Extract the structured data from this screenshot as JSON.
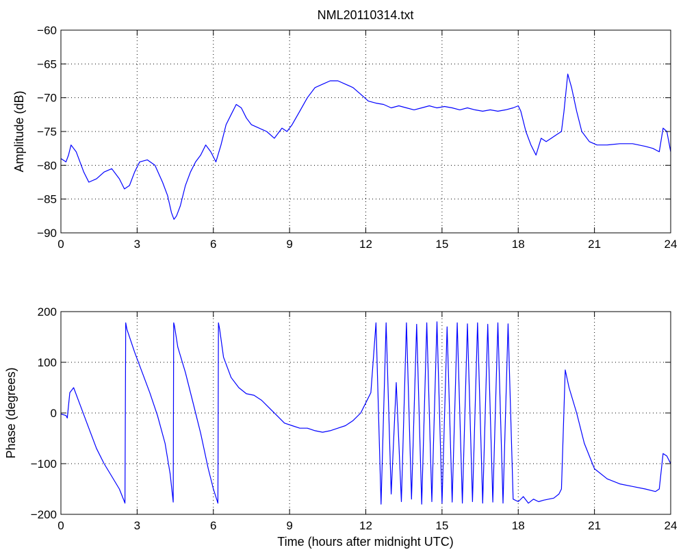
{
  "figure": {
    "title": "NML20110314.txt"
  },
  "colors": {
    "series": "#0000ff",
    "axis": "#000000",
    "grid": "#000000",
    "background": "#ffffff"
  },
  "chart_data": [
    {
      "type": "line",
      "title": "NML20110314.txt",
      "xlabel": "",
      "ylabel": "Amplitude (dB)",
      "xlim": [
        0,
        24
      ],
      "ylim": [
        -90,
        -60
      ],
      "xticks": [
        0,
        3,
        6,
        9,
        12,
        15,
        18,
        21,
        24
      ],
      "yticks": [
        -90,
        -85,
        -80,
        -75,
        -70,
        -65,
        -60
      ],
      "xtick_labels": [
        "0",
        "3",
        "6",
        "9",
        "12",
        "15",
        "18",
        "21",
        "24"
      ],
      "ytick_labels": [
        "−90",
        "−85",
        "−80",
        "−75",
        "−70",
        "−65",
        "−60"
      ],
      "grid": true,
      "series": [
        {
          "color": "#0000ff",
          "x": [
            0,
            0.2,
            0.3,
            0.4,
            0.6,
            0.9,
            1.1,
            1.4,
            1.7,
            2.0,
            2.3,
            2.5,
            2.7,
            2.9,
            3.1,
            3.4,
            3.7,
            4.0,
            4.2,
            4.35,
            4.45,
            4.55,
            4.7,
            4.9,
            5.1,
            5.3,
            5.5,
            5.7,
            5.9,
            6.1,
            6.3,
            6.5,
            6.7,
            6.9,
            7.1,
            7.3,
            7.5,
            7.8,
            8.1,
            8.4,
            8.7,
            8.9,
            9.1,
            9.4,
            9.7,
            10.0,
            10.3,
            10.6,
            10.9,
            11.2,
            11.5,
            11.8,
            12.1,
            12.4,
            12.7,
            13.0,
            13.3,
            13.6,
            13.9,
            14.2,
            14.5,
            14.8,
            15.1,
            15.4,
            15.7,
            16.0,
            16.3,
            16.6,
            16.9,
            17.2,
            17.5,
            17.8,
            18.0,
            18.1,
            18.3,
            18.5,
            18.7,
            18.9,
            19.1,
            19.3,
            19.5,
            19.7,
            19.8,
            19.95,
            20.1,
            20.3,
            20.5,
            20.8,
            21.1,
            21.5,
            22.0,
            22.5,
            23.0,
            23.3,
            23.55,
            23.7,
            23.85,
            24.0
          ],
          "y": [
            -79,
            -79.5,
            -78.5,
            -77,
            -78,
            -81,
            -82.5,
            -82,
            -81,
            -80.5,
            -82,
            -83.5,
            -83,
            -81,
            -79.5,
            -79.2,
            -80,
            -82.5,
            -84.5,
            -87,
            -88,
            -87.5,
            -86,
            -83,
            -81,
            -79.5,
            -78.5,
            -77,
            -78,
            -79.5,
            -77,
            -74,
            -72.5,
            -71,
            -71.5,
            -73,
            -74,
            -74.5,
            -75,
            -76,
            -74.5,
            -75,
            -74,
            -72,
            -70,
            -68.5,
            -68,
            -67.5,
            -67.5,
            -68,
            -68.5,
            -69.5,
            -70.5,
            -70.8,
            -71,
            -71.5,
            -71.2,
            -71.5,
            -71.8,
            -71.5,
            -71.2,
            -71.5,
            -71.3,
            -71.5,
            -71.8,
            -71.5,
            -71.8,
            -72,
            -71.8,
            -72,
            -71.8,
            -71.5,
            -71.2,
            -72,
            -75,
            -77,
            -78.5,
            -76,
            -76.5,
            -76,
            -75.5,
            -75,
            -72,
            -66.5,
            -68.5,
            -72,
            -75,
            -76.5,
            -77,
            -77,
            -76.8,
            -76.8,
            -77.2,
            -77.5,
            -78,
            -74.5,
            -75,
            -78
          ]
        }
      ]
    },
    {
      "type": "line",
      "title": "",
      "xlabel": "Time (hours after midnight UTC)",
      "ylabel": "Phase (degrees)",
      "xlim": [
        0,
        24
      ],
      "ylim": [
        -200,
        200
      ],
      "xticks": [
        0,
        3,
        6,
        9,
        12,
        15,
        18,
        21,
        24
      ],
      "yticks": [
        -200,
        -100,
        0,
        100,
        200
      ],
      "xtick_labels": [
        "0",
        "3",
        "6",
        "9",
        "12",
        "15",
        "18",
        "21",
        "24"
      ],
      "ytick_labels": [
        "−200",
        "−100",
        "0",
        "100",
        "200"
      ],
      "grid": true,
      "series": [
        {
          "color": "#0000ff",
          "x": [
            0,
            0.2,
            0.25,
            0.35,
            0.5,
            0.8,
            1.1,
            1.4,
            1.7,
            2.0,
            2.3,
            2.5,
            2.52,
            2.55,
            2.6,
            2.9,
            3.2,
            3.5,
            3.8,
            4.1,
            4.3,
            4.42,
            4.44,
            4.47,
            4.6,
            4.9,
            5.2,
            5.5,
            5.8,
            6.0,
            6.18,
            6.2,
            6.25,
            6.4,
            6.7,
            7.0,
            7.3,
            7.6,
            7.9,
            8.2,
            8.5,
            8.8,
            9.1,
            9.4,
            9.7,
            10.0,
            10.3,
            10.6,
            10.9,
            11.2,
            11.5,
            11.8,
            12.0,
            12.2,
            12.4,
            12.6,
            12.8,
            13.0,
            13.2,
            13.4,
            13.6,
            13.8,
            14.0,
            14.2,
            14.4,
            14.6,
            14.8,
            15.0,
            15.2,
            15.4,
            15.6,
            15.8,
            16.0,
            16.2,
            16.4,
            16.6,
            16.8,
            17.0,
            17.2,
            17.4,
            17.6,
            17.8,
            18.0,
            18.2,
            18.4,
            18.6,
            18.8,
            19.0,
            19.2,
            19.4,
            19.6,
            19.7,
            19.85,
            20.0,
            20.3,
            20.6,
            21.0,
            21.5,
            22.0,
            22.5,
            23.0,
            23.4,
            23.55,
            23.7,
            23.85,
            24.0
          ],
          "y": [
            -2,
            -5,
            -10,
            40,
            50,
            10,
            -30,
            -70,
            -100,
            -125,
            -150,
            -175,
            -178,
            178,
            165,
            120,
            80,
            40,
            -5,
            -60,
            -120,
            -176,
            178,
            172,
            130,
            80,
            20,
            -40,
            -110,
            -150,
            -178,
            178,
            165,
            110,
            70,
            50,
            38,
            35,
            25,
            10,
            -5,
            -20,
            -25,
            -30,
            -30,
            -35,
            -38,
            -35,
            -30,
            -25,
            -15,
            0,
            20,
            40,
            178,
            -180,
            178,
            -160,
            60,
            -175,
            178,
            -170,
            175,
            -180,
            178,
            -175,
            180,
            -178,
            170,
            -176,
            178,
            -178,
            176,
            -175,
            178,
            -178,
            175,
            -176,
            178,
            -178,
            176,
            -170,
            -175,
            -165,
            -178,
            -170,
            -175,
            -172,
            -170,
            -168,
            -160,
            -150,
            85,
            50,
            0,
            -60,
            -110,
            -130,
            -140,
            -145,
            -150,
            -155,
            -150,
            -80,
            -85,
            -100
          ]
        }
      ]
    }
  ]
}
